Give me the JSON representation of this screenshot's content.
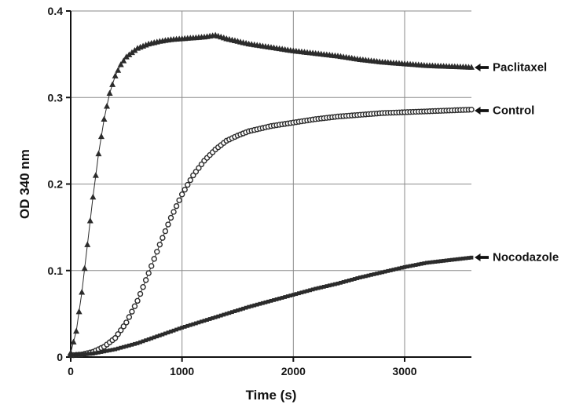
{
  "chart_data": {
    "type": "scatter",
    "title": "",
    "xlabel": "Time (s)",
    "ylabel": "OD 340 nm",
    "xlim": [
      0,
      3600
    ],
    "ylim": [
      0,
      0.4
    ],
    "x_ticks": [
      0,
      1000,
      2000,
      3000
    ],
    "y_ticks": [
      0,
      0.1,
      0.2,
      0.3,
      0.4
    ],
    "grid": true,
    "axis_color": "#111111",
    "grid_color": "#8a8a8a",
    "series": [
      {
        "name": "Paclitaxel",
        "marker": "triangle",
        "color": "#2b2b2b",
        "x": [
          0,
          50,
          100,
          150,
          200,
          250,
          300,
          350,
          400,
          450,
          500,
          600,
          700,
          800,
          900,
          1000,
          1100,
          1200,
          1300,
          1400,
          1500,
          1600,
          1700,
          1800,
          1900,
          2000,
          2200,
          2400,
          2600,
          2800,
          3000,
          3200,
          3400,
          3600
        ],
        "y": [
          0.005,
          0.03,
          0.075,
          0.13,
          0.185,
          0.235,
          0.275,
          0.305,
          0.325,
          0.338,
          0.347,
          0.357,
          0.362,
          0.365,
          0.367,
          0.368,
          0.369,
          0.37,
          0.372,
          0.368,
          0.365,
          0.362,
          0.36,
          0.358,
          0.356,
          0.354,
          0.351,
          0.348,
          0.344,
          0.341,
          0.339,
          0.337,
          0.336,
          0.335
        ]
      },
      {
        "name": "Control",
        "marker": "circle-open",
        "color": "#2b2b2b",
        "x": [
          0,
          100,
          200,
          300,
          400,
          500,
          600,
          700,
          800,
          900,
          1000,
          1100,
          1200,
          1300,
          1400,
          1500,
          1600,
          1700,
          1800,
          1900,
          2000,
          2200,
          2400,
          2600,
          2800,
          3000,
          3200,
          3400,
          3600
        ],
        "y": [
          0.002,
          0.003,
          0.006,
          0.012,
          0.022,
          0.04,
          0.065,
          0.097,
          0.13,
          0.161,
          0.188,
          0.21,
          0.227,
          0.24,
          0.25,
          0.256,
          0.261,
          0.264,
          0.267,
          0.269,
          0.271,
          0.275,
          0.278,
          0.28,
          0.282,
          0.283,
          0.284,
          0.285,
          0.286
        ]
      },
      {
        "name": "Nocodazole",
        "marker": "square",
        "color": "#2b2b2b",
        "x": [
          0,
          200,
          400,
          600,
          800,
          1000,
          1200,
          1400,
          1600,
          1800,
          2000,
          2200,
          2400,
          2600,
          2800,
          3000,
          3200,
          3400,
          3600
        ],
        "y": [
          0.002,
          0.004,
          0.009,
          0.016,
          0.025,
          0.034,
          0.042,
          0.05,
          0.058,
          0.065,
          0.072,
          0.079,
          0.085,
          0.092,
          0.098,
          0.104,
          0.109,
          0.112,
          0.115
        ]
      }
    ],
    "annotations": [
      {
        "label": "Paclitaxel",
        "y": 0.335
      },
      {
        "label": "Control",
        "y": 0.285
      },
      {
        "label": "Nocodazole",
        "y": 0.115
      }
    ]
  }
}
